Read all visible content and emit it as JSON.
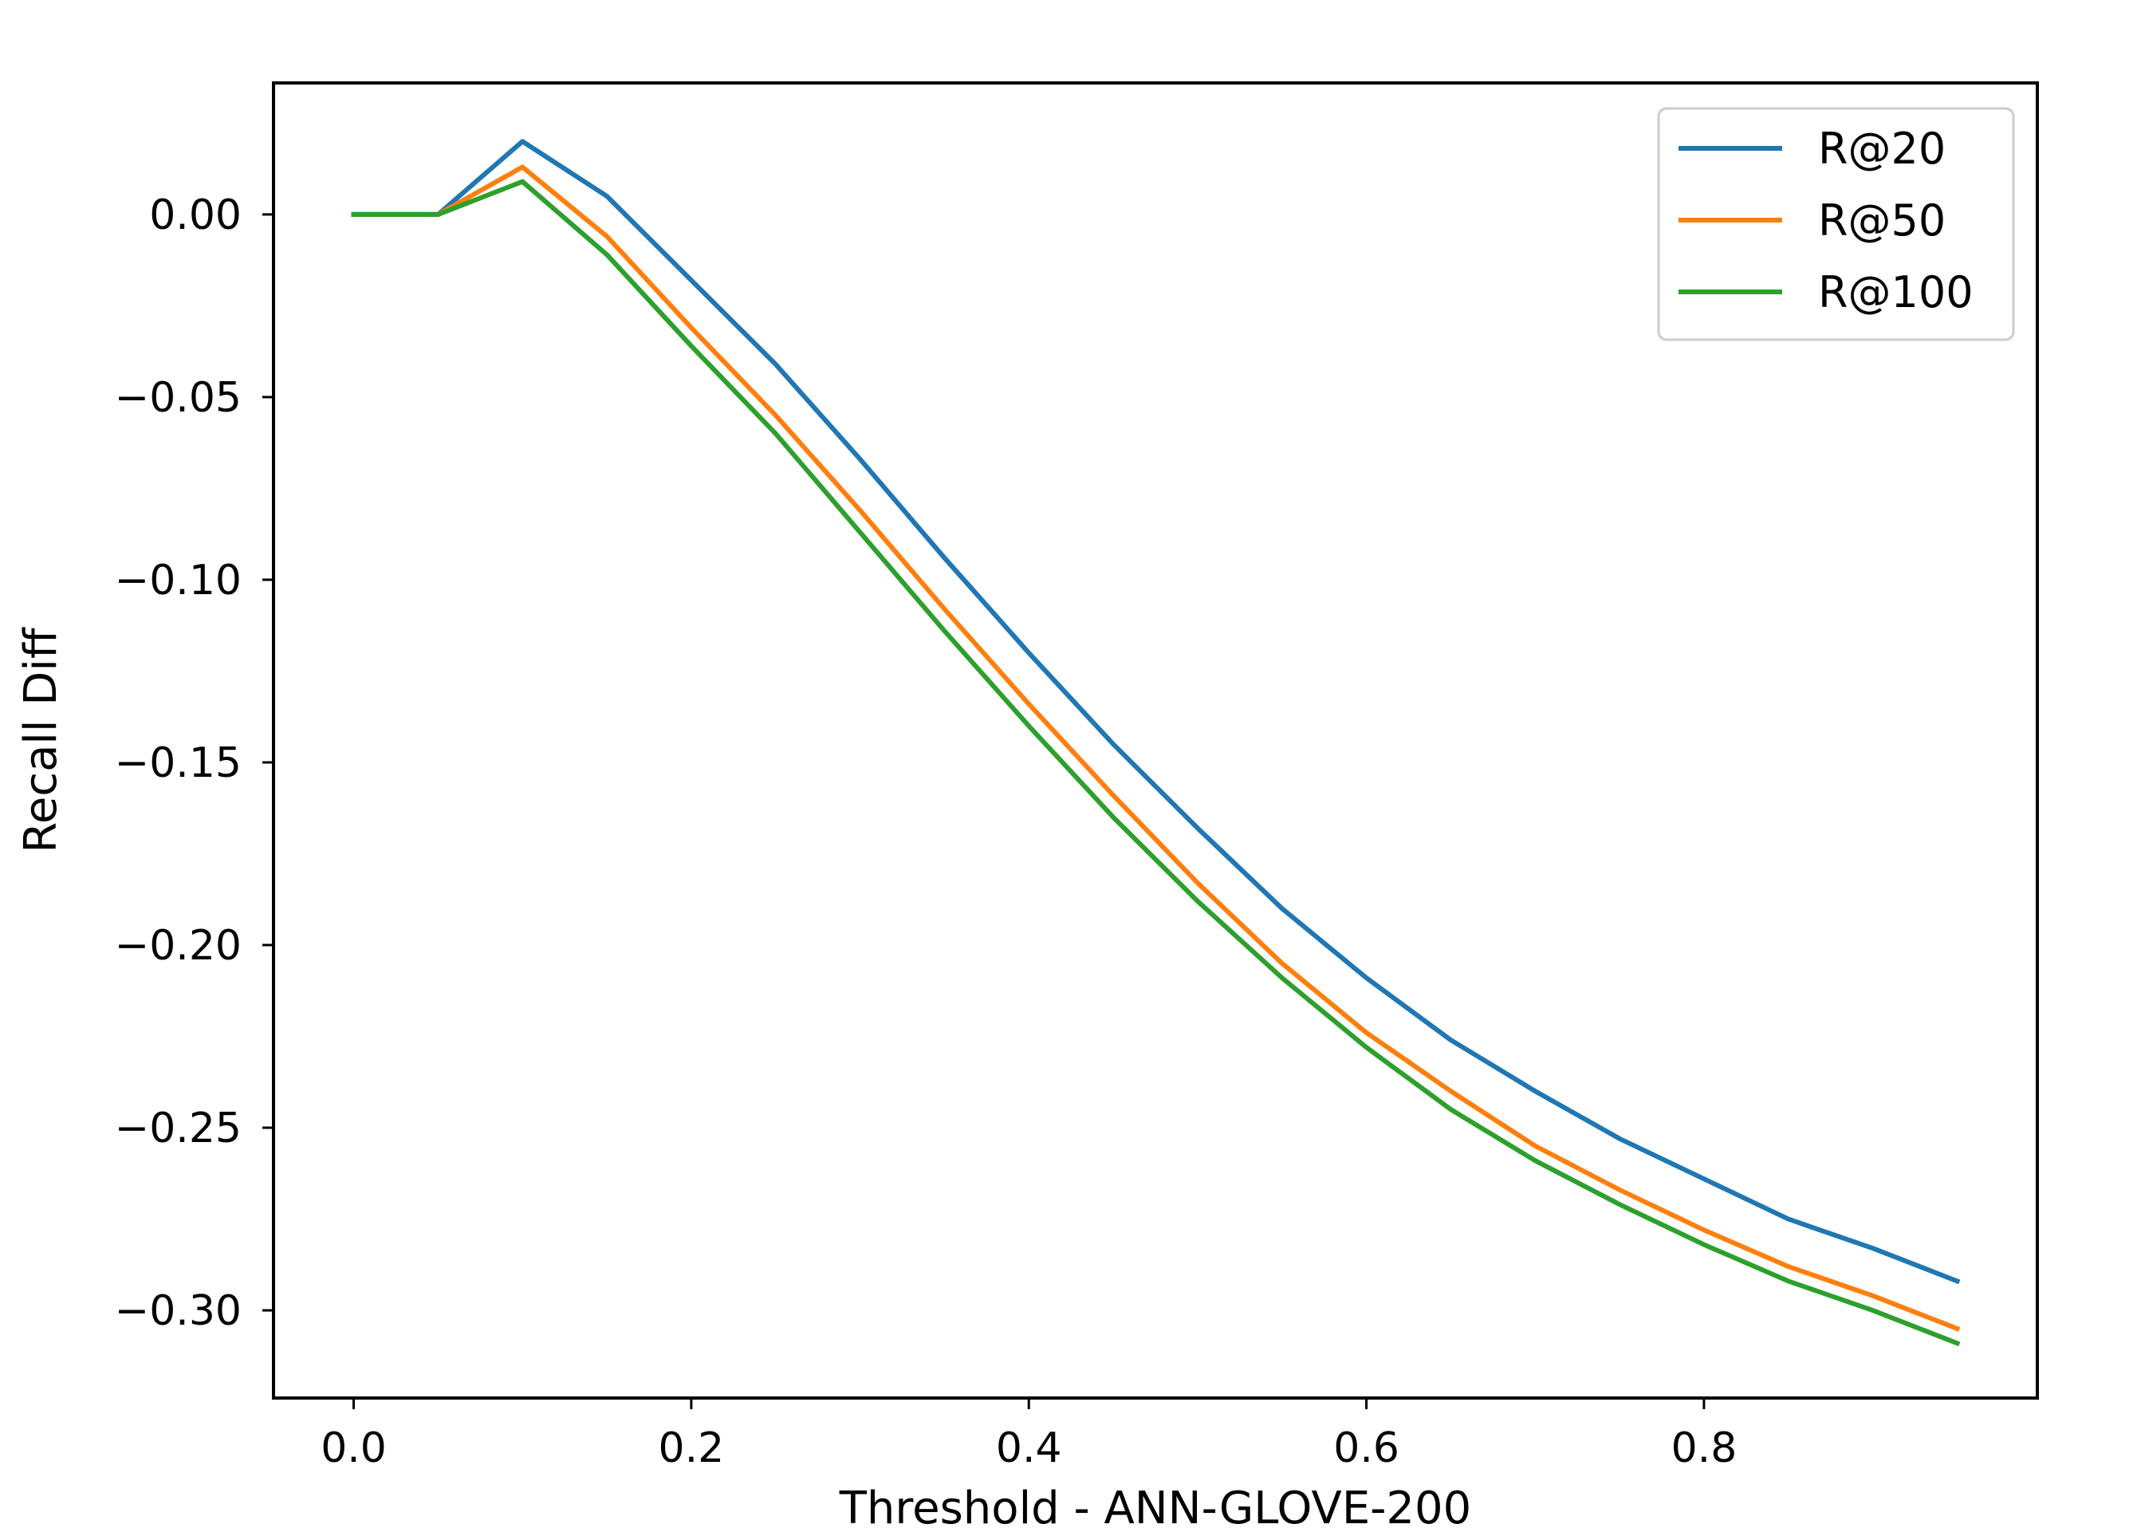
{
  "chart_data": {
    "type": "line",
    "title": "",
    "xlabel": "Threshold - ANN-GLOVE-200",
    "ylabel": "Recall Diff",
    "x": [
      0.0,
      0.05,
      0.1,
      0.15,
      0.2,
      0.25,
      0.3,
      0.35,
      0.4,
      0.45,
      0.5,
      0.55,
      0.6,
      0.65,
      0.7,
      0.75,
      0.8,
      0.85,
      0.9,
      0.95
    ],
    "xlim": [
      -0.0475,
      0.9975
    ],
    "ylim": [
      -0.324,
      0.036
    ],
    "xticks": [
      0.0,
      0.2,
      0.4,
      0.6,
      0.8
    ],
    "xtick_labels": [
      "0.0",
      "0.2",
      "0.4",
      "0.6",
      "0.8"
    ],
    "yticks": [
      0.0,
      -0.05,
      -0.1,
      -0.15,
      -0.2,
      -0.25,
      -0.3
    ],
    "ytick_labels": [
      "0.00",
      "−0.05",
      "−0.10",
      "−0.15",
      "−0.20",
      "−0.25",
      "−0.30"
    ],
    "grid": false,
    "legend_position": "top-right",
    "series": [
      {
        "name": "R@20",
        "color": "#1f77b4",
        "values": [
          0.0,
          0.0,
          0.02,
          0.005,
          -0.018,
          -0.041,
          -0.067,
          -0.094,
          -0.12,
          -0.145,
          -0.168,
          -0.19,
          -0.209,
          -0.226,
          -0.24,
          -0.253,
          -0.264,
          -0.275,
          -0.283,
          -0.292
        ]
      },
      {
        "name": "R@50",
        "color": "#ff7f0e",
        "values": [
          0.0,
          0.0,
          0.013,
          -0.006,
          -0.031,
          -0.055,
          -0.081,
          -0.108,
          -0.134,
          -0.159,
          -0.183,
          -0.205,
          -0.224,
          -0.24,
          -0.255,
          -0.267,
          -0.278,
          -0.288,
          -0.296,
          -0.305
        ]
      },
      {
        "name": "R@100",
        "color": "#2ca02c",
        "values": [
          0.0,
          0.0,
          0.009,
          -0.011,
          -0.036,
          -0.06,
          -0.087,
          -0.114,
          -0.14,
          -0.165,
          -0.188,
          -0.209,
          -0.228,
          -0.245,
          -0.259,
          -0.271,
          -0.282,
          -0.292,
          -0.3,
          -0.309
        ]
      }
    ]
  }
}
